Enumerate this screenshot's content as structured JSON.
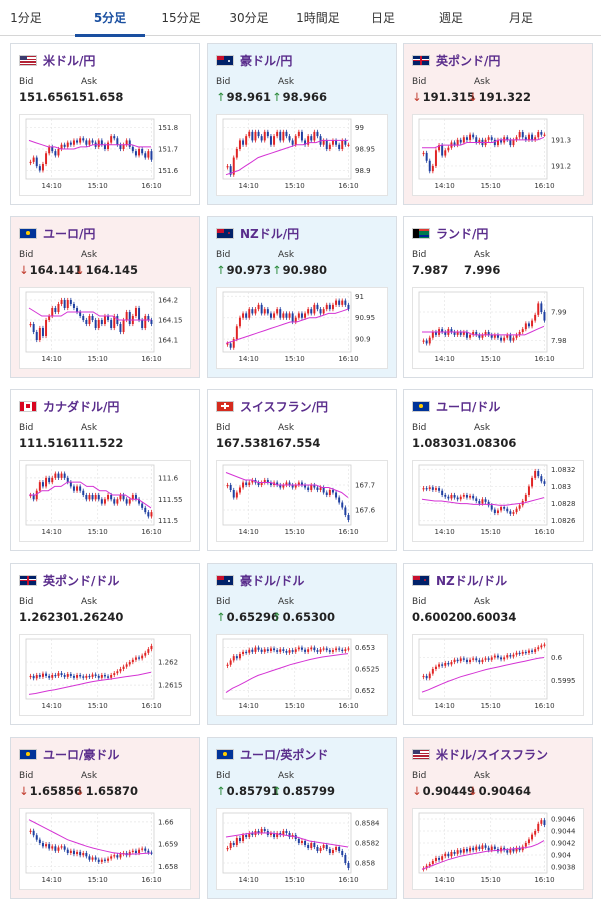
{
  "tabs": [
    "1分足",
    "5分足",
    "15分足",
    "30分足",
    "1時間足",
    "日足",
    "週足",
    "月足"
  ],
  "active_tab": 1,
  "labels": {
    "bid": "Bid",
    "ask": "Ask"
  },
  "x_ticks": [
    "14:10",
    "15:10",
    "16:10"
  ],
  "pairs": [
    {
      "name": "米ドル/円",
      "flags": [
        "us",
        "jp"
      ],
      "bid": "151.656",
      "ask": "151.658",
      "direction": "neutral",
      "ticks": [
        "151.8",
        "151.7",
        "151.6"
      ],
      "ylim": [
        151.56,
        151.84
      ],
      "closes": [
        151.64,
        151.66,
        151.62,
        151.6,
        151.63,
        151.68,
        151.71,
        151.69,
        151.67,
        151.7,
        151.72,
        151.71,
        151.73,
        151.72,
        151.74,
        151.73,
        151.75,
        151.74,
        151.72,
        151.74,
        151.73,
        151.71,
        151.74,
        151.72,
        151.7,
        151.73,
        151.76,
        151.75,
        151.72,
        151.7,
        151.72,
        151.74,
        151.71,
        151.69,
        151.67,
        151.7,
        151.68,
        151.66,
        151.69,
        151.65
      ],
      "ma": [
        151.74,
        151.73,
        151.72,
        151.71,
        151.71,
        151.7,
        151.7,
        151.7,
        151.71,
        151.71,
        151.72,
        151.72,
        151.72,
        151.72,
        151.72,
        151.72,
        151.72,
        151.71,
        151.71,
        151.71
      ]
    },
    {
      "name": "豪ドル/円",
      "flags": [
        "au",
        "jp"
      ],
      "bid": "98.961",
      "ask": "98.966",
      "direction": "up",
      "ticks": [
        "99",
        "98.95",
        "98.9"
      ],
      "ylim": [
        98.88,
        99.02
      ],
      "closes": [
        98.91,
        98.89,
        98.93,
        98.95,
        98.97,
        98.96,
        98.98,
        98.99,
        98.97,
        98.99,
        98.98,
        98.97,
        98.99,
        98.98,
        98.96,
        98.98,
        98.99,
        98.97,
        98.99,
        98.98,
        98.97,
        98.96,
        98.98,
        98.99,
        98.97,
        98.96,
        98.98,
        98.97,
        98.99,
        98.98,
        98.96,
        98.97,
        98.95,
        98.96,
        98.97,
        98.96,
        98.95,
        98.97,
        98.96,
        98.96
      ],
      "ma": [
        98.89,
        98.895,
        98.9,
        98.91,
        98.92,
        98.93,
        98.935,
        98.94,
        98.945,
        98.95,
        98.955,
        98.96,
        98.96,
        98.965,
        98.965,
        98.97,
        98.97,
        98.97,
        98.97,
        98.97
      ]
    },
    {
      "name": "英ポンド/円",
      "flags": [
        "gb",
        "jp"
      ],
      "bid": "191.315",
      "ask": "191.322",
      "direction": "down",
      "ticks": [
        "191.3",
        "191.2"
      ],
      "ylim": [
        191.15,
        191.38
      ],
      "closes": [
        191.25,
        191.22,
        191.18,
        191.2,
        191.26,
        191.28,
        191.24,
        191.26,
        191.27,
        191.29,
        191.28,
        191.3,
        191.29,
        191.31,
        191.3,
        191.32,
        191.31,
        191.29,
        191.3,
        191.28,
        191.3,
        191.31,
        191.3,
        191.28,
        191.3,
        191.29,
        191.31,
        191.3,
        191.28,
        191.3,
        191.31,
        191.33,
        191.31,
        191.3,
        191.32,
        191.3,
        191.31,
        191.33,
        191.32,
        191.32
      ],
      "ma": [
        191.27,
        191.27,
        191.27,
        191.28,
        191.28,
        191.28,
        191.28,
        191.29,
        191.29,
        191.29,
        191.29,
        191.29,
        191.3,
        191.3,
        191.3,
        191.3,
        191.3,
        191.3,
        191.3,
        191.31
      ]
    },
    {
      "name": "ユーロ/円",
      "flags": [
        "eu",
        "jp"
      ],
      "bid": "164.141",
      "ask": "164.145",
      "direction": "down",
      "ticks": [
        "164.2",
        "164.15",
        "164.1"
      ],
      "ylim": [
        164.07,
        164.22
      ],
      "closes": [
        164.14,
        164.12,
        164.1,
        164.13,
        164.11,
        164.15,
        164.16,
        164.18,
        164.17,
        164.19,
        164.2,
        164.18,
        164.2,
        164.19,
        164.18,
        164.17,
        164.16,
        164.15,
        164.14,
        164.16,
        164.15,
        164.13,
        164.15,
        164.14,
        164.16,
        164.15,
        164.13,
        164.16,
        164.14,
        164.12,
        164.15,
        164.17,
        164.14,
        164.16,
        164.18,
        164.15,
        164.13,
        164.16,
        164.15,
        164.14
      ],
      "ma": [
        164.18,
        164.17,
        164.16,
        164.16,
        164.16,
        164.16,
        164.17,
        164.17,
        164.17,
        164.17,
        164.17,
        164.16,
        164.16,
        164.16,
        164.15,
        164.15,
        164.15,
        164.15,
        164.15,
        164.15
      ]
    },
    {
      "name": "NZドル/円",
      "flags": [
        "nz",
        "jp"
      ],
      "bid": "90.973",
      "ask": "90.980",
      "direction": "up",
      "ticks": [
        "91",
        "90.95",
        "90.9"
      ],
      "ylim": [
        90.87,
        91.01
      ],
      "closes": [
        90.89,
        90.88,
        90.9,
        90.93,
        90.95,
        90.96,
        90.95,
        90.97,
        90.96,
        90.97,
        90.98,
        90.96,
        90.97,
        90.96,
        90.95,
        90.96,
        90.97,
        90.95,
        90.96,
        90.95,
        90.96,
        90.94,
        90.95,
        90.96,
        90.95,
        90.96,
        90.97,
        90.96,
        90.98,
        90.97,
        90.96,
        90.97,
        90.98,
        90.97,
        90.98,
        90.99,
        90.98,
        90.99,
        90.98,
        90.97
      ],
      "ma": [
        90.89,
        90.895,
        90.9,
        90.905,
        90.91,
        90.915,
        90.92,
        90.925,
        90.93,
        90.935,
        90.94,
        90.94,
        90.945,
        90.95,
        90.95,
        90.955,
        90.96,
        90.96,
        90.965,
        90.97
      ]
    },
    {
      "name": "ランド/円",
      "flags": [
        "za",
        "jp"
      ],
      "bid": "7.987",
      "ask": "7.996",
      "direction": "neutral",
      "ticks": [
        "7.99",
        "7.98"
      ],
      "ylim": [
        7.976,
        7.997
      ],
      "closes": [
        7.98,
        7.979,
        7.981,
        7.983,
        7.982,
        7.984,
        7.983,
        7.982,
        7.984,
        7.983,
        7.982,
        7.983,
        7.982,
        7.983,
        7.981,
        7.982,
        7.983,
        7.982,
        7.981,
        7.982,
        7.983,
        7.982,
        7.981,
        7.982,
        7.981,
        7.98,
        7.981,
        7.982,
        7.98,
        7.981,
        7.982,
        7.983,
        7.984,
        7.986,
        7.985,
        7.987,
        7.989,
        7.993,
        7.99,
        7.987
      ],
      "ma": [
        7.983,
        7.983,
        7.983,
        7.983,
        7.983,
        7.983,
        7.983,
        7.983,
        7.982,
        7.982,
        7.982,
        7.982,
        7.982,
        7.982,
        7.982,
        7.982,
        7.982,
        7.983,
        7.984,
        7.985
      ]
    },
    {
      "name": "カナダドル/円",
      "flags": [
        "ca",
        "jp"
      ],
      "bid": "111.516",
      "ask": "111.522",
      "direction": "neutral",
      "ticks": [
        "111.6",
        "111.55",
        "111.5"
      ],
      "ylim": [
        111.49,
        111.63
      ],
      "closes": [
        111.56,
        111.55,
        111.57,
        111.59,
        111.58,
        111.6,
        111.59,
        111.6,
        111.61,
        111.6,
        111.61,
        111.6,
        111.59,
        111.58,
        111.57,
        111.58,
        111.57,
        111.56,
        111.55,
        111.56,
        111.55,
        111.56,
        111.55,
        111.54,
        111.55,
        111.56,
        111.55,
        111.54,
        111.55,
        111.56,
        111.55,
        111.54,
        111.55,
        111.56,
        111.55,
        111.54,
        111.53,
        111.52,
        111.51,
        111.52
      ],
      "ma": [
        111.56,
        111.56,
        111.57,
        111.57,
        111.58,
        111.58,
        111.59,
        111.59,
        111.59,
        111.58,
        111.58,
        111.57,
        111.57,
        111.56,
        111.56,
        111.56,
        111.55,
        111.55,
        111.54,
        111.53
      ]
    },
    {
      "name": "スイスフラン/円",
      "flags": [
        "ch",
        "jp"
      ],
      "bid": "167.538",
      "ask": "167.554",
      "direction": "neutral",
      "ticks": [
        "167.7",
        "167.6"
      ],
      "ylim": [
        167.54,
        167.78
      ],
      "closes": [
        167.7,
        167.68,
        167.65,
        167.67,
        167.69,
        167.71,
        167.7,
        167.71,
        167.72,
        167.71,
        167.7,
        167.71,
        167.72,
        167.71,
        167.7,
        167.71,
        167.7,
        167.69,
        167.7,
        167.71,
        167.7,
        167.69,
        167.7,
        167.71,
        167.7,
        167.69,
        167.68,
        167.7,
        167.69,
        167.68,
        167.69,
        167.67,
        167.66,
        167.68,
        167.67,
        167.65,
        167.63,
        167.61,
        167.58,
        167.56
      ],
      "ma": [
        167.75,
        167.74,
        167.73,
        167.72,
        167.72,
        167.71,
        167.71,
        167.71,
        167.7,
        167.7,
        167.7,
        167.7,
        167.7,
        167.7,
        167.7,
        167.69,
        167.69,
        167.68,
        167.67,
        167.65
      ]
    },
    {
      "name": "ユーロ/ドル",
      "flags": [
        "eu",
        "us"
      ],
      "bid": "1.08303",
      "ask": "1.08306",
      "direction": "neutral",
      "ticks": [
        "1.0832",
        "1.083",
        "1.0828",
        "1.0826"
      ],
      "ylim": [
        1.08255,
        1.08325
      ],
      "closes": [
        1.08298,
        1.08297,
        1.08299,
        1.08296,
        1.08298,
        1.08295,
        1.0829,
        1.08288,
        1.08286,
        1.0829,
        1.08287,
        1.08285,
        1.08288,
        1.0829,
        1.08287,
        1.08289,
        1.08286,
        1.08283,
        1.0828,
        1.08285,
        1.08282,
        1.08278,
        1.08273,
        1.08269,
        1.08272,
        1.08276,
        1.08274,
        1.08271,
        1.08268,
        1.0827,
        1.08274,
        1.08278,
        1.08283,
        1.0829,
        1.083,
        1.0831,
        1.08318,
        1.08312,
        1.08306,
        1.08303
      ],
      "ma": [
        1.08285,
        1.08284,
        1.08283,
        1.08283,
        1.08282,
        1.08281,
        1.0828,
        1.0828,
        1.08279,
        1.08279,
        1.08279,
        1.08279,
        1.08278,
        1.08278,
        1.08279,
        1.0828,
        1.08281,
        1.08283,
        1.08285,
        1.08287
      ]
    },
    {
      "name": "英ポンド/ドル",
      "flags": [
        "gb",
        "us"
      ],
      "bid": "1.26230",
      "ask": "1.26240",
      "direction": "neutral",
      "ticks": [
        "1.262",
        "1.2615"
      ],
      "ylim": [
        1.2612,
        1.2625
      ],
      "closes": [
        1.2617,
        1.26165,
        1.26172,
        1.26168,
        1.26175,
        1.2617,
        1.26166,
        1.26172,
        1.2617,
        1.26176,
        1.26172,
        1.26168,
        1.26174,
        1.2617,
        1.26166,
        1.26172,
        1.26169,
        1.26166,
        1.2617,
        1.26168,
        1.26173,
        1.2617,
        1.26166,
        1.26172,
        1.26169,
        1.26166,
        1.26172,
        1.26176,
        1.2618,
        1.26185,
        1.2619,
        1.26195,
        1.262,
        1.26205,
        1.2621,
        1.26208,
        1.26214,
        1.2622,
        1.26228,
        1.26235
      ],
      "ma": [
        1.2613,
        1.26132,
        1.26135,
        1.26138,
        1.2614,
        1.26143,
        1.26146,
        1.26149,
        1.26152,
        1.26155,
        1.26158,
        1.2616,
        1.26162,
        1.26164,
        1.26166,
        1.26168,
        1.2617,
        1.26172,
        1.26175,
        1.26178
      ]
    },
    {
      "name": "豪ドル/ドル",
      "flags": [
        "au",
        "us"
      ],
      "bid": "0.65296",
      "ask": "0.65300",
      "direction": "up",
      "ticks": [
        "0.653",
        "0.6525",
        "0.652"
      ],
      "ylim": [
        0.6518,
        0.6532
      ],
      "closes": [
        0.6526,
        0.6527,
        0.6528,
        0.65275,
        0.65285,
        0.6529,
        0.65288,
        0.65295,
        0.6529,
        0.653,
        0.65295,
        0.6529,
        0.65296,
        0.65292,
        0.65298,
        0.65294,
        0.6529,
        0.65296,
        0.65292,
        0.65288,
        0.65294,
        0.6529,
        0.65296,
        0.653,
        0.65295,
        0.6529,
        0.65296,
        0.653,
        0.65294,
        0.6529,
        0.65296,
        0.65298,
        0.65294,
        0.6529,
        0.65294,
        0.65298,
        0.65295,
        0.65292,
        0.65296,
        0.65298
      ],
      "ma": [
        0.65195,
        0.65205,
        0.65212,
        0.6522,
        0.65228,
        0.65235,
        0.6524,
        0.65245,
        0.6525,
        0.65255,
        0.6526,
        0.65264,
        0.65268,
        0.65272,
        0.65275,
        0.65278,
        0.6528,
        0.65282,
        0.65284,
        0.65286
      ]
    },
    {
      "name": "NZドル/ドル",
      "flags": [
        "nz",
        "us"
      ],
      "bid": "0.60020",
      "ask": "0.60034",
      "direction": "neutral",
      "ticks": [
        "0.6",
        "0.5995"
      ],
      "ylim": [
        0.5991,
        0.6004
      ],
      "closes": [
        0.5996,
        0.59955,
        0.59965,
        0.59975,
        0.5998,
        0.59985,
        0.59982,
        0.59988,
        0.59985,
        0.5999,
        0.59995,
        0.59992,
        0.59998,
        0.59995,
        0.5999,
        0.59995,
        0.59998,
        0.59994,
        0.5999,
        0.59995,
        0.59998,
        0.59995,
        0.6,
        0.60004,
        0.6,
        0.59996,
        0.6,
        0.60005,
        0.60002,
        0.60006,
        0.6001,
        0.60008,
        0.60012,
        0.6001,
        0.60015,
        0.60012,
        0.60018,
        0.60022,
        0.60026,
        0.60028
      ],
      "ma": [
        0.59925,
        0.5993,
        0.59936,
        0.59942,
        0.59948,
        0.59953,
        0.59958,
        0.59962,
        0.59966,
        0.5997,
        0.59974,
        0.59977,
        0.5998,
        0.59983,
        0.59986,
        0.59989,
        0.59992,
        0.59995,
        0.59998,
        0.6
      ]
    },
    {
      "name": "ユーロ/豪ドル",
      "flags": [
        "eu",
        "au"
      ],
      "bid": "1.65856",
      "ask": "1.65870",
      "direction": "down",
      "ticks": [
        "1.66",
        "1.659",
        "1.658"
      ],
      "ylim": [
        1.6577,
        1.6604
      ],
      "closes": [
        1.6596,
        1.6594,
        1.6592,
        1.65905,
        1.6589,
        1.659,
        1.6588,
        1.6589,
        1.6587,
        1.65885,
        1.6589,
        1.65875,
        1.6586,
        1.6587,
        1.65855,
        1.65865,
        1.6585,
        1.6586,
        1.65845,
        1.6583,
        1.6584,
        1.6583,
        1.6582,
        1.6583,
        1.65825,
        1.65835,
        1.65845,
        1.6585,
        1.6584,
        1.65855,
        1.6586,
        1.6585,
        1.65865,
        1.6587,
        1.6586,
        1.65875,
        1.6588,
        1.6587,
        1.65862,
        1.6586
      ],
      "ma": [
        1.6601,
        1.65995,
        1.6598,
        1.65965,
        1.6595,
        1.65935,
        1.6592,
        1.6591,
        1.659,
        1.6589,
        1.65882,
        1.65875,
        1.65868,
        1.65862,
        1.65858,
        1.65855,
        1.65855,
        1.65856,
        1.65858,
        1.6586
      ]
    },
    {
      "name": "ユーロ/英ポンド",
      "flags": [
        "eu",
        "gb"
      ],
      "bid": "0.85791",
      "ask": "0.85799",
      "direction": "up",
      "ticks": [
        "0.8584",
        "0.8582",
        "0.858"
      ],
      "ylim": [
        0.8579,
        0.8585
      ],
      "closes": [
        0.85815,
        0.8582,
        0.85818,
        0.85825,
        0.85822,
        0.85828,
        0.85826,
        0.8583,
        0.85828,
        0.85832,
        0.8583,
        0.85834,
        0.85832,
        0.85828,
        0.8583,
        0.85826,
        0.8583,
        0.85828,
        0.85832,
        0.8583,
        0.85826,
        0.85828,
        0.85824,
        0.8582,
        0.85822,
        0.85818,
        0.85815,
        0.8582,
        0.85816,
        0.85812,
        0.85815,
        0.85818,
        0.85814,
        0.8581,
        0.85813,
        0.85816,
        0.85812,
        0.85808,
        0.858,
        0.85795
      ],
      "ma": [
        0.85826,
        0.85827,
        0.85828,
        0.85829,
        0.8583,
        0.8583,
        0.8583,
        0.8583,
        0.85829,
        0.85828,
        0.85827,
        0.85826,
        0.85824,
        0.85822,
        0.85821,
        0.8582,
        0.85819,
        0.85818,
        0.85817,
        0.85816
      ]
    },
    {
      "name": "米ドル/スイスフラン",
      "flags": [
        "us",
        "ch"
      ],
      "bid": "0.90449",
      "ask": "0.90464",
      "direction": "down",
      "ticks": [
        "0.9046",
        "0.9044",
        "0.9042",
        "0.904",
        "0.9038"
      ],
      "ylim": [
        0.9037,
        0.9047
      ],
      "closes": [
        0.90378,
        0.90382,
        0.90385,
        0.9039,
        0.90395,
        0.90392,
        0.90398,
        0.90402,
        0.90398,
        0.90405,
        0.90402,
        0.90408,
        0.90404,
        0.9041,
        0.90406,
        0.90412,
        0.90408,
        0.90414,
        0.9041,
        0.90416,
        0.90412,
        0.90408,
        0.90414,
        0.9041,
        0.90406,
        0.90412,
        0.90408,
        0.90404,
        0.9041,
        0.90406,
        0.90412,
        0.90408,
        0.90414,
        0.9042,
        0.90426,
        0.90434,
        0.9044,
        0.90452,
        0.90458,
        0.9045
      ],
      "ma": [
        0.90376,
        0.9038,
        0.90384,
        0.90388,
        0.90392,
        0.90395,
        0.90398,
        0.904,
        0.90402,
        0.90404,
        0.90406,
        0.90407,
        0.90408,
        0.90409,
        0.9041,
        0.90411,
        0.90412,
        0.90414,
        0.90418,
        0.90424
      ]
    }
  ]
}
